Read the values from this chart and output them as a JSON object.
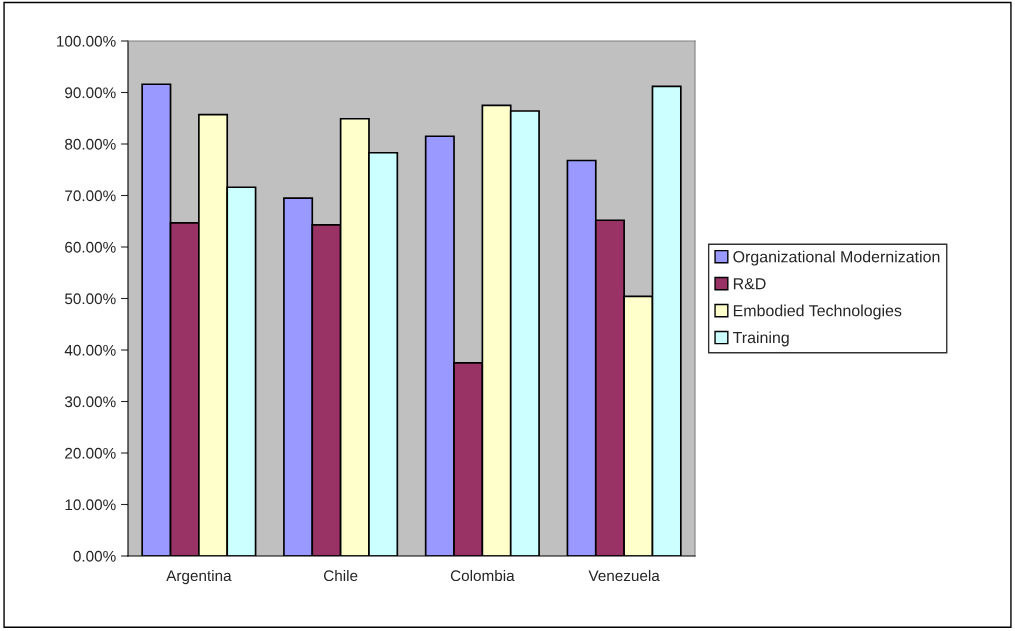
{
  "chart_data": {
    "type": "bar",
    "categories": [
      "Argentina",
      "Chile",
      "Colombia",
      "Venezuela"
    ],
    "series": [
      {
        "name": "Organizational Modernization",
        "color": "#9999ff",
        "values": [
          91.6,
          69.5,
          81.5,
          76.8
        ]
      },
      {
        "name": "R&D",
        "color": "#993366",
        "values": [
          64.7,
          64.3,
          37.5,
          65.2
        ]
      },
      {
        "name": "Embodied Technologies",
        "color": "#ffffcc",
        "values": [
          85.7,
          84.9,
          87.5,
          50.4
        ]
      },
      {
        "name": "Training",
        "color": "#ccffff",
        "values": [
          71.6,
          78.3,
          86.4,
          91.2
        ]
      }
    ],
    "ylim": [
      0,
      100
    ],
    "yticks": [
      {
        "value": 0,
        "label": "0.00%"
      },
      {
        "value": 10,
        "label": "10.00%"
      },
      {
        "value": 20,
        "label": "20.00%"
      },
      {
        "value": 30,
        "label": "30.00%"
      },
      {
        "value": 40,
        "label": "40.00%"
      },
      {
        "value": 50,
        "label": "50.00%"
      },
      {
        "value": 60,
        "label": "60.00%"
      },
      {
        "value": 70,
        "label": "70.00%"
      },
      {
        "value": 80,
        "label": "80.00%"
      },
      {
        "value": 90,
        "label": "90.00%"
      },
      {
        "value": 100,
        "label": "100.00%"
      }
    ],
    "grid": false,
    "legend": "right"
  }
}
